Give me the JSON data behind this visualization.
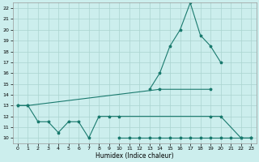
{
  "xlabel": "Humidex (Indice chaleur)",
  "background_color": "#cceeed",
  "grid_color": "#aad4d0",
  "line_color": "#1a7a6e",
  "xlim": [
    -0.5,
    23.5
  ],
  "ylim": [
    9.5,
    22.5
  ],
  "xticks": [
    0,
    1,
    2,
    3,
    4,
    5,
    6,
    7,
    8,
    9,
    10,
    11,
    12,
    13,
    14,
    15,
    16,
    17,
    18,
    19,
    20,
    21,
    22,
    23
  ],
  "yticks": [
    10,
    11,
    12,
    13,
    14,
    15,
    16,
    17,
    18,
    19,
    20,
    21,
    22
  ],
  "series1_x": [
    0,
    1,
    14,
    19
  ],
  "series1_y": [
    13,
    13,
    14.5,
    14.5
  ],
  "series2_x": [
    10,
    11,
    12,
    13,
    14,
    15,
    16,
    17,
    18,
    19,
    20,
    21,
    22,
    23
  ],
  "series2_y": [
    10,
    10,
    10,
    10,
    10,
    10,
    10,
    10,
    10,
    10,
    10,
    10,
    10,
    10
  ],
  "series3_x": [
    0,
    1,
    2,
    3,
    4,
    5,
    6,
    7,
    8,
    9,
    10,
    19,
    20,
    22,
    23
  ],
  "series3_y": [
    13,
    13,
    11.5,
    11.5,
    10.5,
    11.5,
    11.5,
    10,
    12,
    12,
    12,
    12,
    12,
    10,
    10
  ],
  "series4_x": [
    13,
    14,
    15,
    16,
    17,
    18,
    19,
    20
  ],
  "series4_y": [
    14.5,
    16,
    18.5,
    20,
    22.5,
    19.5,
    18.5,
    17
  ]
}
